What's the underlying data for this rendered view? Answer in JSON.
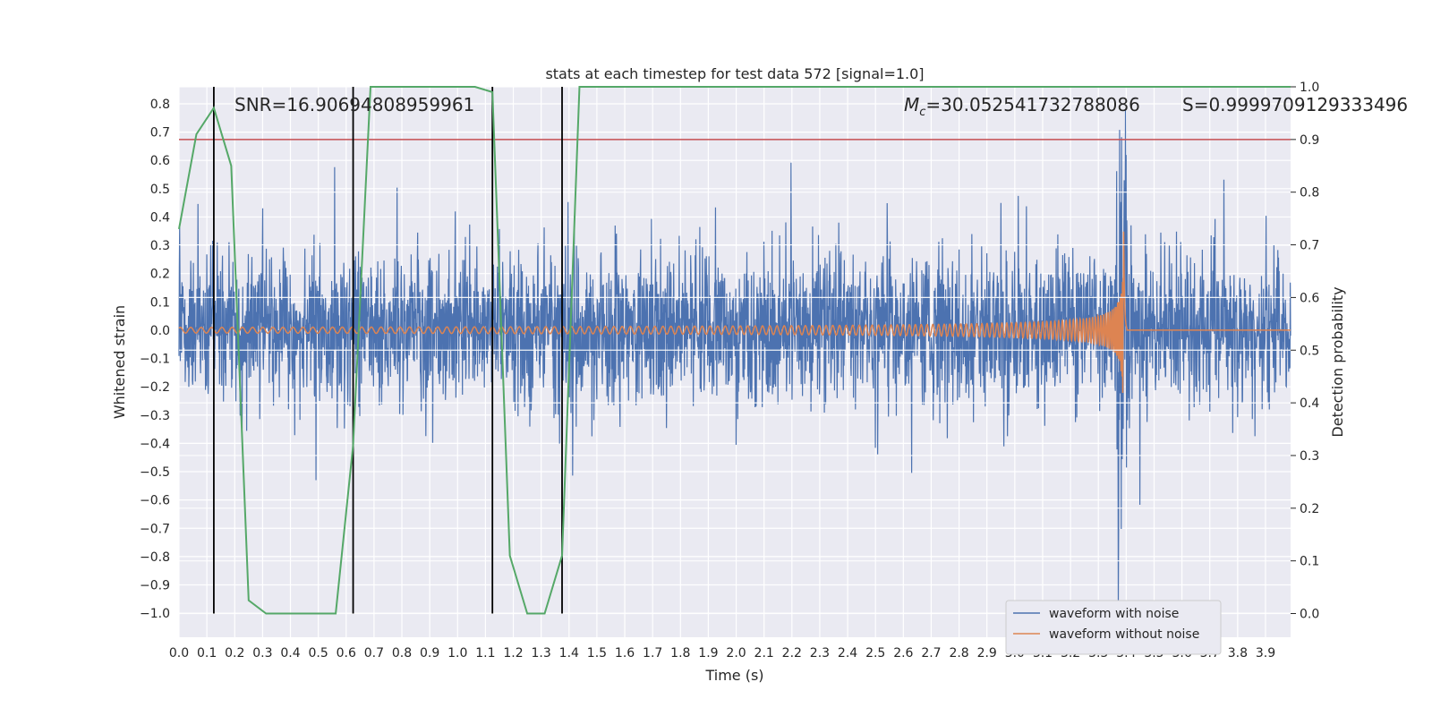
{
  "chart_data": {
    "type": "line",
    "title": "stats at each timestep for test data 572 [signal=1.0]",
    "xlabel": "Time (s)",
    "ylabel_left": "Whitened strain",
    "ylabel_right": "Detection probability",
    "xlim": [
      0.0,
      3.99
    ],
    "ylim_left": [
      -1.085,
      0.86
    ],
    "ylim_right": [
      -0.045,
      1.0
    ],
    "x_ticks": [
      "0.0",
      "0.1",
      "0.2",
      "0.3",
      "0.4",
      "0.5",
      "0.6",
      "0.7",
      "0.8",
      "0.9",
      "1.0",
      "1.1",
      "1.2",
      "1.3",
      "1.4",
      "1.5",
      "1.6",
      "1.7",
      "1.8",
      "1.9",
      "2.0",
      "2.1",
      "2.2",
      "2.3",
      "2.4",
      "2.5",
      "2.6",
      "2.7",
      "2.8",
      "2.9",
      "3.0",
      "3.1",
      "3.2",
      "3.3",
      "3.4",
      "3.5",
      "3.6",
      "3.7",
      "3.8",
      "3.9"
    ],
    "y_ticks_left": [
      "0.8",
      "0.7",
      "0.6",
      "0.5",
      "0.4",
      "0.3",
      "0.2",
      "0.1",
      "0.0",
      "−0.1",
      "−0.2",
      "−0.3",
      "−0.4",
      "−0.5",
      "−0.6",
      "−0.7",
      "−0.8",
      "−0.9",
      "−1.0"
    ],
    "y_ticks_right": [
      "1.0",
      "0.9",
      "0.8",
      "0.7",
      "0.6",
      "0.5",
      "0.4",
      "0.3",
      "0.2",
      "0.1",
      "0.0"
    ],
    "grid": true,
    "legend_position": "bottom-right",
    "annotations": {
      "snr": "SNR=16.90694808959961",
      "mc": "=30.052541732788086",
      "mc_symbol": "M",
      "mc_sub": "c",
      "s": "S=0.9999709129333496"
    },
    "threshold_line": {
      "y_right": 0.9,
      "color": "#c44e52"
    },
    "vertical_lines_x": [
      0.125,
      0.625,
      1.125,
      1.375
    ],
    "series": [
      {
        "name": "waveform with noise",
        "color": "#4c72b0",
        "description_only": "dense noisy whitened strain, approx ±0.4 amplitude, spike near 3.38-3.40 s"
      },
      {
        "name": "waveform without noise",
        "color": "#dd8452",
        "chirp": {
          "start": 0.0,
          "merger": 3.39,
          "amp_start": 0.01,
          "amp_peak": 0.78
        }
      },
      {
        "name": "detection probability",
        "color": "#55a868",
        "axis": "right",
        "x": [
          0.0,
          0.0625,
          0.125,
          0.1875,
          0.25,
          0.3125,
          0.375,
          0.4375,
          0.5,
          0.5625,
          0.625,
          0.6875,
          0.75,
          0.8125,
          0.875,
          0.9375,
          1.0,
          1.0625,
          1.125,
          1.1875,
          1.25,
          1.3125,
          1.375,
          1.4375,
          1.5,
          3.99
        ],
        "y": [
          0.73,
          0.91,
          0.96,
          0.85,
          0.025,
          0.0,
          0.0,
          0.0,
          0.0,
          0.0,
          0.32,
          1.0,
          1.0,
          1.0,
          1.0,
          1.0,
          1.0,
          1.0,
          0.99,
          0.11,
          0.0,
          0.0,
          0.11,
          1.0,
          1.0,
          1.0
        ]
      }
    ]
  }
}
